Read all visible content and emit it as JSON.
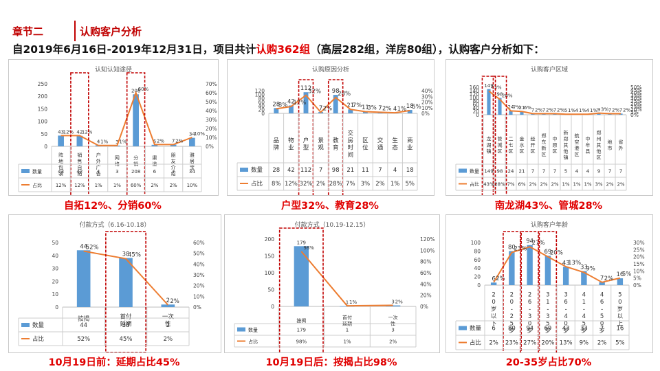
{
  "header": {
    "section": "章节二",
    "title": "认购客户分析",
    "summary_pre": "自2019年6月16日-2019年12月31日，项目共计",
    "summary_hl": "认购362组",
    "summary_post": "（高层282组，洋房80组），认购客户分析如下："
  },
  "colors": {
    "bar": "#5b9bd5",
    "line": "#ed7d31",
    "accent": "#c00000",
    "caption": "#e00000"
  },
  "chart_data": [
    {
      "id": "c1",
      "type": "bar+line",
      "title": "认知认知途径",
      "categories": [
        "阵地包装",
        "销售自拓",
        "户外广告",
        "网络",
        "分销",
        "渠道",
        "朋友介绍",
        "雅居宝"
      ],
      "series": [
        {
          "name": "数量",
          "values": [
            43,
            42,
            4,
            3,
            208,
            6,
            7,
            34
          ],
          "axis": "left"
        },
        {
          "name": "占比",
          "values": [
            12,
            12,
            1,
            1,
            60,
            2,
            2,
            10
          ],
          "axis": "right",
          "unit": "%"
        }
      ],
      "ylim": [
        0,
        250
      ],
      "y_ticks": [
        0,
        50,
        100,
        150,
        200,
        250
      ],
      "y2lim": [
        0,
        70
      ],
      "y2_ticks": [
        "0%",
        "10%",
        "20%",
        "30%",
        "40%",
        "50%",
        "60%",
        "70%"
      ],
      "highlight": [
        1,
        4
      ]
    },
    {
      "id": "c2",
      "type": "bar+line",
      "title": "认购原因分析",
      "categories": [
        "品牌",
        "物业",
        "户型",
        "景观",
        "教育",
        "交房时间",
        "区位",
        "交通",
        "生态",
        "商业"
      ],
      "series": [
        {
          "name": "数量",
          "values": [
            28,
            42,
            112,
            7,
            98,
            21,
            11,
            7,
            4,
            18
          ],
          "axis": "left"
        },
        {
          "name": "占比",
          "values": [
            8,
            12,
            32,
            2,
            28,
            7,
            3,
            2,
            1,
            5
          ],
          "axis": "right",
          "unit": "%"
        }
      ],
      "ylim": [
        0,
        120
      ],
      "y_ticks": [
        0,
        20,
        40,
        60,
        80,
        100,
        120
      ],
      "y2lim": [
        0,
        40
      ],
      "y2_ticks": [
        "0%",
        "10%",
        "20%",
        "30%",
        "40%"
      ],
      "highlight": [
        2,
        4
      ]
    },
    {
      "id": "c3",
      "type": "bar+line",
      "title": "认购客户区域",
      "categories": [
        "龙湖镇",
        "管城区",
        "二七区",
        "金水区",
        "经开区",
        "郑东新区",
        "中原区",
        "新郑其他镇",
        "航空港区",
        "中牟县",
        "郑州其他区",
        "地市",
        "省外"
      ],
      "series": [
        {
          "name": "数量",
          "values": [
            149,
            98,
            24,
            21,
            7,
            7,
            7,
            5,
            4,
            4,
            9,
            7,
            7
          ],
          "axis": "left"
        },
        {
          "name": "占比",
          "values": [
            43,
            28,
            7,
            6,
            2,
            2,
            2,
            1,
            1,
            1,
            3,
            2,
            2
          ],
          "axis": "right",
          "unit": "%"
        }
      ],
      "ylim": [
        0,
        160
      ],
      "y_ticks": [
        0,
        20,
        40,
        60,
        80,
        100,
        120,
        140,
        160
      ],
      "y2lim": [
        0,
        50
      ],
      "y2_ticks": [
        "0%",
        "5%",
        "10%",
        "15%",
        "20%",
        "25%",
        "30%",
        "35%",
        "40%",
        "45%",
        "50%"
      ],
      "highlight": [
        0,
        1
      ]
    },
    {
      "id": "c4",
      "type": "bar+line",
      "title": "付款方式（6.16-10.18）",
      "categories": [
        "按揭",
        "首付延期",
        "一次性"
      ],
      "series": [
        {
          "name": "数量",
          "values": [
            44,
            38,
            2
          ],
          "axis": "left"
        },
        {
          "name": "占比",
          "values": [
            52,
            45,
            2
          ],
          "axis": "right",
          "unit": "%"
        }
      ],
      "ylim": [
        0,
        50
      ],
      "y_ticks": [
        0,
        10,
        20,
        30,
        40,
        50
      ],
      "y2lim": [
        0,
        60
      ],
      "y2_ticks": [
        "0%",
        "10%",
        "20%",
        "30%",
        "40%",
        "50%",
        "60%"
      ],
      "highlight": [
        1
      ]
    },
    {
      "id": "c5",
      "type": "bar+line",
      "title": "付款方式（10.19-12.15）",
      "categories": [
        "按揭",
        "首付延期",
        "一次性"
      ],
      "series": [
        {
          "name": "数量",
          "values": [
            179,
            1,
            3
          ],
          "axis": "left"
        },
        {
          "name": "占比",
          "values": [
            98,
            1,
            2
          ],
          "axis": "right",
          "unit": "%"
        }
      ],
      "ylim": [
        0,
        200
      ],
      "y_ticks": [
        0,
        50,
        100,
        150,
        200
      ],
      "y2lim": [
        0,
        120
      ],
      "y2_ticks": [
        "0%",
        "20%",
        "40%",
        "60%",
        "80%",
        "100%",
        "120%"
      ],
      "highlight": [
        0
      ]
    },
    {
      "id": "c6",
      "type": "bar+line",
      "title": "认购客户年龄",
      "categories": [
        "20岁以下",
        "20-25岁",
        "26-30岁",
        "31-35岁",
        "36-40岁",
        "41-45岁",
        "46-50岁",
        "50岁以上"
      ],
      "series": [
        {
          "name": "数量",
          "values": [
            6,
            80,
            94,
            69,
            43,
            33,
            7,
            16
          ],
          "axis": "left"
        },
        {
          "name": "占比",
          "values": [
            2,
            23,
            27,
            20,
            13,
            9,
            2,
            5
          ],
          "axis": "right",
          "unit": "%"
        }
      ],
      "ylim": [
        0,
        100
      ],
      "y_ticks": [
        0,
        20,
        40,
        60,
        80,
        100
      ],
      "y2lim": [
        0,
        30
      ],
      "y2_ticks": [
        "0%",
        "5%",
        "10%",
        "15%",
        "20%",
        "25%",
        "30%"
      ],
      "highlight": [
        1,
        2,
        3
      ]
    }
  ],
  "captions": {
    "c1": "自拓12%、分销60%",
    "c2": "户型32%、教育28%",
    "c3": "南龙湖43%、管城28%",
    "c4": "10月19日前：延期占比45%",
    "c5": "10月19日后：按揭占比98%",
    "c6": "20-35岁占比70%"
  }
}
